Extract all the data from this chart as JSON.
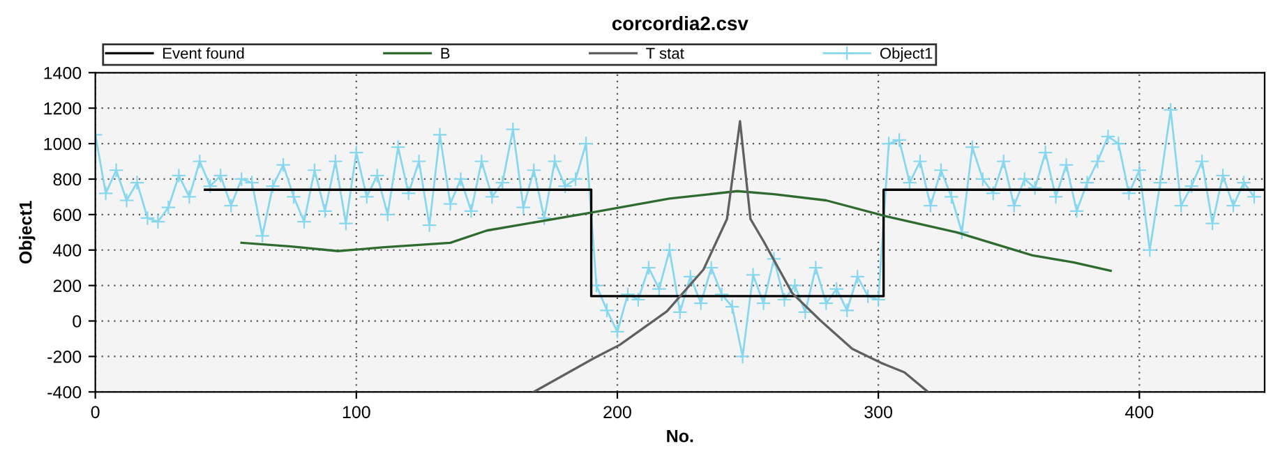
{
  "chart_data": {
    "type": "line",
    "title": "corcordia2.csv",
    "xlabel": "No.",
    "ylabel": "Object1",
    "xlim": [
      0,
      448
    ],
    "xticks": [
      0,
      100,
      200,
      300,
      400
    ],
    "ylim": [
      -400,
      1400
    ],
    "yticks": [
      -400,
      -200,
      0,
      200,
      400,
      600,
      800,
      1000,
      1200,
      1400
    ],
    "grid": true,
    "legend": "top",
    "series": [
      {
        "name": "Event found",
        "color": "#000000",
        "x": [
          42,
          190,
          190,
          302,
          302,
          448
        ],
        "values": [
          740,
          740,
          140,
          140,
          740,
          740
        ]
      },
      {
        "name": "B",
        "color": "#2f6b2f",
        "x": [
          56,
          75,
          93,
          110,
          136,
          150,
          191,
          220,
          246,
          260,
          280,
          303,
          330,
          359,
          375,
          389
        ],
        "values": [
          441,
          420,
          394,
          415,
          441,
          510,
          614,
          690,
          732,
          715,
          680,
          590,
          500,
          370,
          330,
          283
        ]
      },
      {
        "name": "T stat",
        "color": "#606060",
        "x": [
          168,
          191,
          201,
          219,
          233,
          242,
          247,
          251,
          256,
          267,
          278,
          290,
          301,
          310,
          319
        ],
        "values": [
          -400,
          -210,
          -134,
          55,
          290,
          575,
          1126,
          575,
          450,
          157,
          0,
          -157,
          -236,
          -290,
          -400
        ]
      },
      {
        "name": "Object1",
        "color": "#87d7ef",
        "marker": "cross",
        "x": [
          0,
          4,
          8,
          12,
          16,
          20,
          24,
          28,
          32,
          36,
          40,
          44,
          48,
          52,
          56,
          60,
          64,
          68,
          72,
          76,
          80,
          84,
          88,
          92,
          96,
          100,
          104,
          108,
          112,
          116,
          120,
          124,
          128,
          132,
          136,
          140,
          144,
          148,
          152,
          156,
          160,
          164,
          168,
          172,
          176,
          180,
          184,
          188,
          192,
          196,
          200,
          204,
          208,
          212,
          216,
          220,
          224,
          228,
          232,
          236,
          240,
          244,
          248,
          252,
          256,
          260,
          264,
          268,
          272,
          276,
          280,
          284,
          288,
          292,
          296,
          300,
          304,
          308,
          312,
          316,
          320,
          324,
          328,
          332,
          336,
          340,
          344,
          348,
          352,
          356,
          360,
          364,
          368,
          372,
          376,
          380,
          384,
          388,
          392,
          396,
          400,
          404,
          408,
          412,
          416,
          420,
          424,
          428,
          432,
          436,
          440,
          444
        ],
        "values": [
          1050,
          720,
          850,
          680,
          780,
          580,
          560,
          640,
          820,
          700,
          900,
          760,
          820,
          650,
          800,
          780,
          480,
          760,
          880,
          700,
          560,
          850,
          620,
          900,
          550,
          950,
          700,
          820,
          600,
          980,
          720,
          900,
          540,
          1050,
          660,
          800,
          620,
          900,
          700,
          780,
          1080,
          640,
          850,
          580,
          900,
          760,
          800,
          1000,
          200,
          60,
          -60,
          150,
          120,
          300,
          180,
          400,
          50,
          250,
          100,
          300,
          150,
          80,
          -200,
          260,
          100,
          350,
          120,
          200,
          50,
          300,
          100,
          180,
          60,
          250,
          140,
          120,
          1000,
          1020,
          780,
          900,
          650,
          850,
          700,
          500,
          980,
          800,
          720,
          900,
          650,
          800,
          750,
          950,
          700,
          880,
          620,
          780,
          900,
          1040,
          1000,
          720,
          850,
          400,
          780,
          1190,
          650,
          760,
          900,
          550,
          820,
          650,
          780,
          700
        ]
      }
    ]
  }
}
